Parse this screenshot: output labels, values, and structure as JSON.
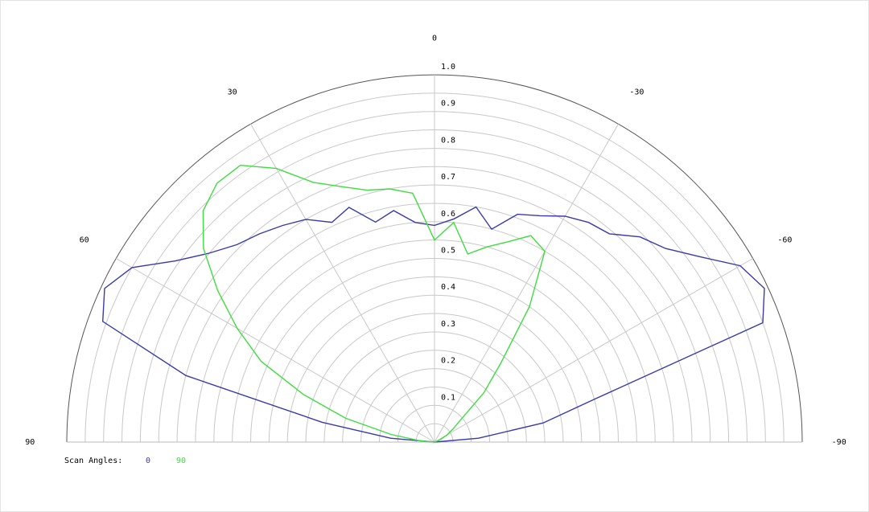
{
  "chart_data": {
    "type": "polar",
    "theta": [
      90,
      85,
      80,
      75,
      70,
      65,
      60,
      55,
      50,
      45,
      40,
      35,
      30,
      25,
      20,
      15,
      10,
      5,
      0,
      -5,
      -10,
      -15,
      -20,
      -25,
      -30,
      -35,
      -40,
      -45,
      -50,
      -55,
      -60,
      -65,
      -70,
      -75,
      -80,
      -85,
      -90
    ],
    "series": [
      {
        "name": "0",
        "color": "#3a3aaa",
        "values": [
          0.0,
          0.12,
          0.31,
          0.7,
          0.96,
          0.99,
          0.95,
          0.86,
          0.8,
          0.76,
          0.74,
          0.72,
          0.7,
          0.66,
          0.68,
          0.62,
          0.64,
          0.6,
          0.59,
          0.61,
          0.65,
          0.6,
          0.66,
          0.68,
          0.71,
          0.73,
          0.74,
          0.79,
          0.82,
          0.88,
          0.96,
          0.99,
          0.95,
          0.45,
          0.3,
          0.12,
          0.0
        ]
      },
      {
        "name": "90",
        "color": "#3fdc3f",
        "values": [
          0.0,
          0.04,
          0.12,
          0.25,
          0.38,
          0.52,
          0.62,
          0.72,
          0.82,
          0.89,
          0.92,
          0.92,
          0.86,
          0.78,
          0.74,
          0.71,
          0.7,
          0.68,
          0.55,
          0.6,
          0.52,
          0.55,
          0.58,
          0.62,
          0.6,
          0.45,
          0.28,
          0.19,
          0.09,
          0.06,
          0.04,
          0.02,
          0.01,
          0.0,
          0.0,
          0.0,
          0.0
        ]
      }
    ],
    "rlim": [
      0,
      1
    ],
    "rticks": [
      0.1,
      0.2,
      0.3,
      0.4,
      0.5,
      0.6,
      0.7,
      0.8,
      0.9,
      {
        "value": 1,
        "label": "1.0"
      }
    ],
    "rminor": [
      0.05,
      0.15,
      0.25,
      0.35,
      0.45,
      0.55,
      0.65,
      0.75,
      0.85,
      0.95
    ],
    "thetaticks": [
      90,
      60,
      30,
      0,
      -30,
      -60,
      -90
    ],
    "legend_title": "Scan Angles:",
    "grid": true
  }
}
